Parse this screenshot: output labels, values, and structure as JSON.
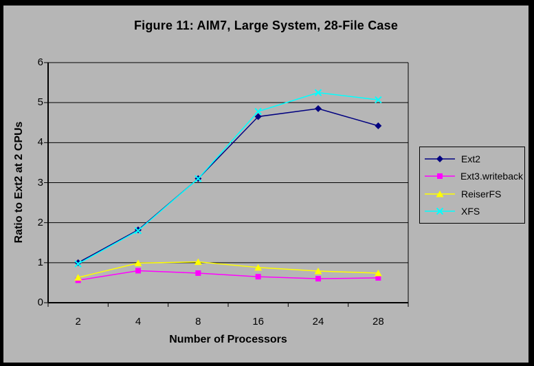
{
  "title": "Figure 11: AIM7, Large System, 28-File Case",
  "colors": {
    "frame": "#000000",
    "background": "#b6b6b6",
    "axis": "#000000",
    "gridline": "#000000"
  },
  "chart_data": {
    "type": "line",
    "title": "Figure 11: AIM7, Large System, 28-File Case",
    "xlabel": "Number of Processors",
    "ylabel": "Ratio to Ext2 at 2 CPUs",
    "categories": [
      "2",
      "4",
      "8",
      "16",
      "24",
      "28"
    ],
    "ylim": [
      0,
      6
    ],
    "y_tick_step": 1,
    "y_tick_labels": [
      "0",
      "1",
      "2",
      "3",
      "4",
      "5",
      "6"
    ],
    "grid": true,
    "legend_position": "right",
    "series": [
      {
        "name": "Ext2",
        "color": "#000080",
        "marker": "diamond",
        "values": [
          1.0,
          1.82,
          3.1,
          4.65,
          4.85,
          4.42
        ]
      },
      {
        "name": "Ext3.writeback",
        "color": "#ff00ff",
        "marker": "square",
        "values": [
          0.56,
          0.8,
          0.74,
          0.65,
          0.6,
          0.62
        ]
      },
      {
        "name": "ReiserFS",
        "color": "#ffff00",
        "marker": "triangle",
        "values": [
          0.63,
          0.99,
          1.02,
          0.88,
          0.79,
          0.74
        ]
      },
      {
        "name": "XFS",
        "color": "#00ffff",
        "marker": "x",
        "values": [
          0.97,
          1.8,
          3.1,
          4.78,
          5.25,
          5.07
        ]
      }
    ]
  }
}
